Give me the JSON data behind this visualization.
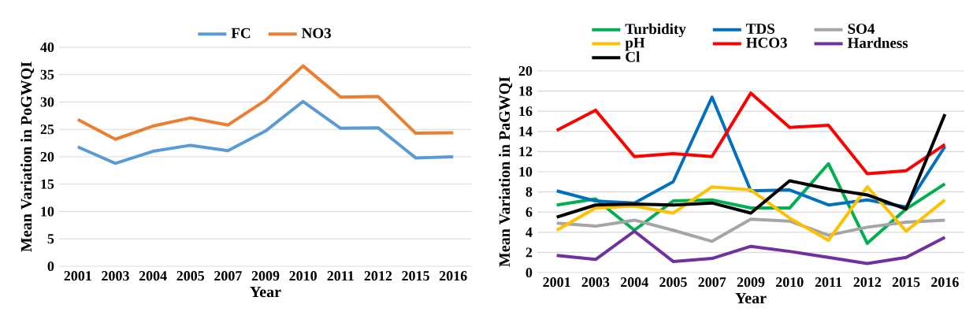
{
  "chart_data": [
    {
      "type": "line",
      "xlabel": "Year",
      "ylabel": "Mean Variation in PoGWQI",
      "categories": [
        "2001",
        "2003",
        "2004",
        "2005",
        "2007",
        "2009",
        "2010",
        "2011",
        "2012",
        "2015",
        "2016"
      ],
      "ylim": [
        0,
        40
      ],
      "yticks": [
        0,
        5,
        10,
        15,
        20,
        25,
        30,
        35,
        40
      ],
      "grid": "y",
      "legend": "top",
      "series": [
        {
          "name": "FC",
          "color": "#5b9bd5",
          "values": [
            21.8,
            18.8,
            21.0,
            22.1,
            21.1,
            24.7,
            30.1,
            25.2,
            25.3,
            19.8,
            20.0
          ]
        },
        {
          "name": "NO3",
          "color": "#ed7d31",
          "values": [
            26.8,
            23.2,
            25.6,
            27.1,
            25.8,
            30.3,
            36.6,
            30.9,
            31.0,
            24.3,
            24.4
          ]
        }
      ]
    },
    {
      "type": "line",
      "xlabel": "Year",
      "ylabel": "Mean Variation in PaGWQI",
      "categories": [
        "2001",
        "2003",
        "2004",
        "2005",
        "2007",
        "2009",
        "2010",
        "2011",
        "2012",
        "2015",
        "2016"
      ],
      "ylim": [
        0,
        20
      ],
      "yticks": [
        0,
        2,
        4,
        6,
        8,
        10,
        12,
        14,
        16,
        18,
        20
      ],
      "grid": "y",
      "legend": "top",
      "series": [
        {
          "name": "Turbidity",
          "color": "#00b050",
          "values": [
            6.7,
            7.3,
            4.2,
            7.1,
            7.2,
            6.4,
            6.4,
            10.8,
            2.9,
            6.3,
            8.8
          ]
        },
        {
          "name": "TDS",
          "color": "#0070c0",
          "values": [
            8.1,
            7.1,
            6.9,
            9.0,
            17.4,
            8.1,
            8.2,
            6.7,
            7.2,
            6.5,
            12.5
          ]
        },
        {
          "name": "SO4",
          "color": "#a5a5a5",
          "values": [
            4.9,
            4.6,
            5.2,
            4.2,
            3.1,
            5.3,
            5.1,
            3.7,
            4.5,
            5.0,
            5.2
          ]
        },
        {
          "name": "pH",
          "color": "#ffc000",
          "values": [
            4.2,
            6.4,
            6.6,
            5.9,
            8.5,
            8.2,
            5.4,
            3.2,
            8.5,
            4.1,
            7.2
          ]
        },
        {
          "name": "HCO3",
          "color": "#ff0000",
          "values": [
            14.1,
            16.1,
            11.5,
            11.8,
            11.5,
            17.8,
            14.4,
            14.6,
            9.8,
            10.1,
            12.7
          ]
        },
        {
          "name": "Hardness",
          "color": "#7030a0",
          "values": [
            1.7,
            1.3,
            4.1,
            1.1,
            1.4,
            2.6,
            2.1,
            1.5,
            0.9,
            1.5,
            3.5
          ]
        },
        {
          "name": "Cl",
          "color": "#000000",
          "values": [
            5.5,
            6.7,
            6.8,
            6.7,
            6.9,
            5.9,
            9.1,
            8.3,
            7.7,
            6.3,
            15.7
          ]
        }
      ]
    }
  ]
}
